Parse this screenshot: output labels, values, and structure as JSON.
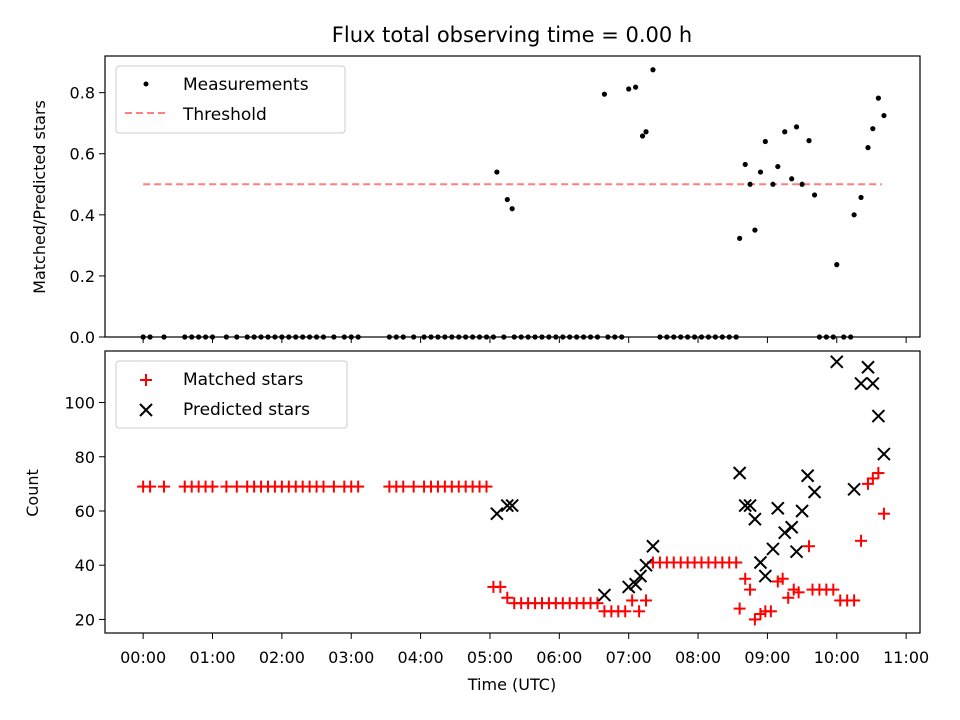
{
  "chart_data": [
    {
      "type": "scatter",
      "panel": "top",
      "title": "Flux total observing time = 0.00 h",
      "xlabel": "",
      "ylabel": "Matched/Predicted stars",
      "xlim": [
        -0.55,
        11.2
      ],
      "ylim": [
        0,
        0.92
      ],
      "yticks": [
        0.0,
        0.2,
        0.4,
        0.6,
        0.8
      ],
      "ytick_labels": [
        "0.0",
        "0.2",
        "0.4",
        "0.6",
        "0.8"
      ],
      "legend_position": "top-left",
      "threshold": {
        "name": "Threshold",
        "value": 0.5,
        "x_range": [
          0.0,
          10.65
        ],
        "color": "#ff7f7f"
      },
      "series": [
        {
          "name": "Measurements",
          "color": "#000000",
          "points": [
            [
              0.0,
              0
            ],
            [
              0.1,
              0
            ],
            [
              0.3,
              0
            ],
            [
              0.6,
              0
            ],
            [
              0.7,
              0
            ],
            [
              0.8,
              0
            ],
            [
              0.9,
              0
            ],
            [
              1.0,
              0
            ],
            [
              1.2,
              0
            ],
            [
              1.35,
              0
            ],
            [
              1.5,
              0
            ],
            [
              1.6,
              0
            ],
            [
              1.7,
              0
            ],
            [
              1.8,
              0
            ],
            [
              1.9,
              0
            ],
            [
              2.0,
              0
            ],
            [
              2.1,
              0
            ],
            [
              2.2,
              0
            ],
            [
              2.3,
              0
            ],
            [
              2.4,
              0
            ],
            [
              2.5,
              0
            ],
            [
              2.6,
              0
            ],
            [
              2.75,
              0
            ],
            [
              2.9,
              0
            ],
            [
              3.0,
              0
            ],
            [
              3.1,
              0
            ],
            [
              3.55,
              0
            ],
            [
              3.65,
              0
            ],
            [
              3.75,
              0
            ],
            [
              3.9,
              0
            ],
            [
              4.05,
              0
            ],
            [
              4.15,
              0
            ],
            [
              4.25,
              0
            ],
            [
              4.35,
              0
            ],
            [
              4.45,
              0
            ],
            [
              4.55,
              0
            ],
            [
              4.65,
              0
            ],
            [
              4.75,
              0
            ],
            [
              4.85,
              0
            ],
            [
              4.95,
              0
            ],
            [
              5.05,
              0
            ],
            [
              5.2,
              0
            ],
            [
              5.35,
              0
            ],
            [
              5.45,
              0
            ],
            [
              5.55,
              0
            ],
            [
              5.65,
              0
            ],
            [
              5.75,
              0
            ],
            [
              5.85,
              0
            ],
            [
              5.95,
              0
            ],
            [
              6.05,
              0
            ],
            [
              6.15,
              0
            ],
            [
              6.25,
              0
            ],
            [
              6.35,
              0
            ],
            [
              6.45,
              0
            ],
            [
              6.55,
              0
            ],
            [
              6.7,
              0
            ],
            [
              6.8,
              0
            ],
            [
              6.9,
              0
            ],
            [
              7.45,
              0
            ],
            [
              7.55,
              0
            ],
            [
              7.65,
              0
            ],
            [
              7.75,
              0
            ],
            [
              7.85,
              0
            ],
            [
              7.95,
              0
            ],
            [
              8.05,
              0
            ],
            [
              8.15,
              0
            ],
            [
              8.25,
              0
            ],
            [
              8.35,
              0
            ],
            [
              8.45,
              0
            ],
            [
              8.55,
              0
            ],
            [
              9.75,
              0
            ],
            [
              9.85,
              0
            ],
            [
              9.95,
              0
            ],
            [
              10.1,
              0
            ],
            [
              10.2,
              0
            ],
            [
              5.1,
              0.54
            ],
            [
              5.25,
              0.45
            ],
            [
              5.32,
              0.42
            ],
            [
              6.65,
              0.795
            ],
            [
              7.0,
              0.812
            ],
            [
              7.1,
              0.818
            ],
            [
              7.2,
              0.658
            ],
            [
              7.25,
              0.672
            ],
            [
              7.35,
              0.875
            ],
            [
              8.6,
              0.323
            ],
            [
              8.68,
              0.565
            ],
            [
              8.75,
              0.5
            ],
            [
              8.82,
              0.35
            ],
            [
              8.9,
              0.54
            ],
            [
              8.97,
              0.64
            ],
            [
              9.08,
              0.5
            ],
            [
              9.15,
              0.558
            ],
            [
              9.25,
              0.672
            ],
            [
              9.35,
              0.518
            ],
            [
              9.42,
              0.688
            ],
            [
              9.5,
              0.5
            ],
            [
              9.6,
              0.643
            ],
            [
              9.68,
              0.465
            ],
            [
              10.0,
              0.237
            ],
            [
              10.25,
              0.4
            ],
            [
              10.35,
              0.457
            ],
            [
              10.45,
              0.62
            ],
            [
              10.52,
              0.682
            ],
            [
              10.6,
              0.782
            ],
            [
              10.68,
              0.725
            ]
          ]
        }
      ]
    },
    {
      "type": "scatter",
      "panel": "bottom",
      "title": "",
      "xlabel": "Time (UTC)",
      "ylabel": "Count",
      "xlim": [
        -0.55,
        11.2
      ],
      "ylim": [
        15,
        119
      ],
      "yticks": [
        20,
        40,
        60,
        80,
        100
      ],
      "ytick_labels": [
        "20",
        "40",
        "60",
        "80",
        "100"
      ],
      "xticks": [
        0,
        1,
        2,
        3,
        4,
        5,
        6,
        7,
        8,
        9,
        10,
        11
      ],
      "xtick_labels": [
        "00:00",
        "01:00",
        "02:00",
        "03:00",
        "04:00",
        "05:00",
        "06:00",
        "07:00",
        "08:00",
        "09:00",
        "10:00",
        "11:00"
      ],
      "legend_position": "top-left",
      "series": [
        {
          "name": "Matched stars",
          "color": "#ff0000",
          "marker": "plus",
          "points": [
            [
              0.0,
              69
            ],
            [
              0.1,
              69
            ],
            [
              0.3,
              69
            ],
            [
              0.6,
              69
            ],
            [
              0.7,
              69
            ],
            [
              0.8,
              69
            ],
            [
              0.9,
              69
            ],
            [
              1.0,
              69
            ],
            [
              1.2,
              69
            ],
            [
              1.35,
              69
            ],
            [
              1.5,
              69
            ],
            [
              1.6,
              69
            ],
            [
              1.7,
              69
            ],
            [
              1.8,
              69
            ],
            [
              1.9,
              69
            ],
            [
              2.0,
              69
            ],
            [
              2.1,
              69
            ],
            [
              2.2,
              69
            ],
            [
              2.3,
              69
            ],
            [
              2.4,
              69
            ],
            [
              2.5,
              69
            ],
            [
              2.6,
              69
            ],
            [
              2.75,
              69
            ],
            [
              2.9,
              69
            ],
            [
              3.0,
              69
            ],
            [
              3.1,
              69
            ],
            [
              3.55,
              69
            ],
            [
              3.65,
              69
            ],
            [
              3.75,
              69
            ],
            [
              3.9,
              69
            ],
            [
              4.05,
              69
            ],
            [
              4.15,
              69
            ],
            [
              4.25,
              69
            ],
            [
              4.35,
              69
            ],
            [
              4.45,
              69
            ],
            [
              4.55,
              69
            ],
            [
              4.65,
              69
            ],
            [
              4.75,
              69
            ],
            [
              4.85,
              69
            ],
            [
              4.95,
              69
            ],
            [
              5.05,
              32
            ],
            [
              5.15,
              32
            ],
            [
              5.25,
              28
            ],
            [
              5.35,
              26
            ],
            [
              5.45,
              26
            ],
            [
              5.55,
              26
            ],
            [
              5.65,
              26
            ],
            [
              5.75,
              26
            ],
            [
              5.85,
              26
            ],
            [
              5.95,
              26
            ],
            [
              6.05,
              26
            ],
            [
              6.15,
              26
            ],
            [
              6.25,
              26
            ],
            [
              6.35,
              26
            ],
            [
              6.45,
              26
            ],
            [
              6.55,
              26
            ],
            [
              6.65,
              23
            ],
            [
              6.75,
              23
            ],
            [
              6.85,
              23
            ],
            [
              6.95,
              23
            ],
            [
              7.05,
              27
            ],
            [
              7.15,
              23
            ],
            [
              7.25,
              27
            ],
            [
              7.35,
              41
            ],
            [
              7.45,
              41
            ],
            [
              7.55,
              41
            ],
            [
              7.65,
              41
            ],
            [
              7.75,
              41
            ],
            [
              7.85,
              41
            ],
            [
              7.95,
              41
            ],
            [
              8.05,
              41
            ],
            [
              8.15,
              41
            ],
            [
              8.25,
              41
            ],
            [
              8.35,
              41
            ],
            [
              8.45,
              41
            ],
            [
              8.55,
              41
            ],
            [
              8.6,
              24
            ],
            [
              8.68,
              35
            ],
            [
              8.75,
              31
            ],
            [
              8.82,
              20
            ],
            [
              8.9,
              22
            ],
            [
              8.97,
              23
            ],
            [
              9.05,
              23
            ],
            [
              9.15,
              34
            ],
            [
              9.22,
              35
            ],
            [
              9.3,
              28
            ],
            [
              9.38,
              31
            ],
            [
              9.45,
              30
            ],
            [
              9.6,
              47
            ],
            [
              9.65,
              31
            ],
            [
              9.75,
              31
            ],
            [
              9.85,
              31
            ],
            [
              9.95,
              31
            ],
            [
              10.05,
              27
            ],
            [
              10.15,
              27
            ],
            [
              10.25,
              27
            ],
            [
              10.35,
              49
            ],
            [
              10.45,
              70
            ],
            [
              10.52,
              72
            ],
            [
              10.6,
              74
            ],
            [
              10.68,
              59
            ]
          ]
        },
        {
          "name": "Predicted stars",
          "color": "#000000",
          "marker": "x",
          "points": [
            [
              5.1,
              59
            ],
            [
              5.25,
              62
            ],
            [
              5.32,
              62
            ],
            [
              6.65,
              29
            ],
            [
              7.0,
              32
            ],
            [
              7.1,
              33
            ],
            [
              7.17,
              36
            ],
            [
              7.25,
              40
            ],
            [
              7.35,
              47
            ],
            [
              8.6,
              74
            ],
            [
              8.68,
              62
            ],
            [
              8.75,
              62
            ],
            [
              8.82,
              57
            ],
            [
              8.9,
              41
            ],
            [
              8.97,
              36
            ],
            [
              9.08,
              46
            ],
            [
              9.15,
              61
            ],
            [
              9.25,
              52
            ],
            [
              9.35,
              54
            ],
            [
              9.42,
              45
            ],
            [
              9.5,
              60
            ],
            [
              9.58,
              73
            ],
            [
              9.68,
              67
            ],
            [
              10.0,
              115
            ],
            [
              10.25,
              68
            ],
            [
              10.35,
              107
            ],
            [
              10.45,
              113
            ],
            [
              10.52,
              107
            ],
            [
              10.6,
              95
            ],
            [
              10.68,
              81
            ]
          ]
        }
      ]
    }
  ]
}
